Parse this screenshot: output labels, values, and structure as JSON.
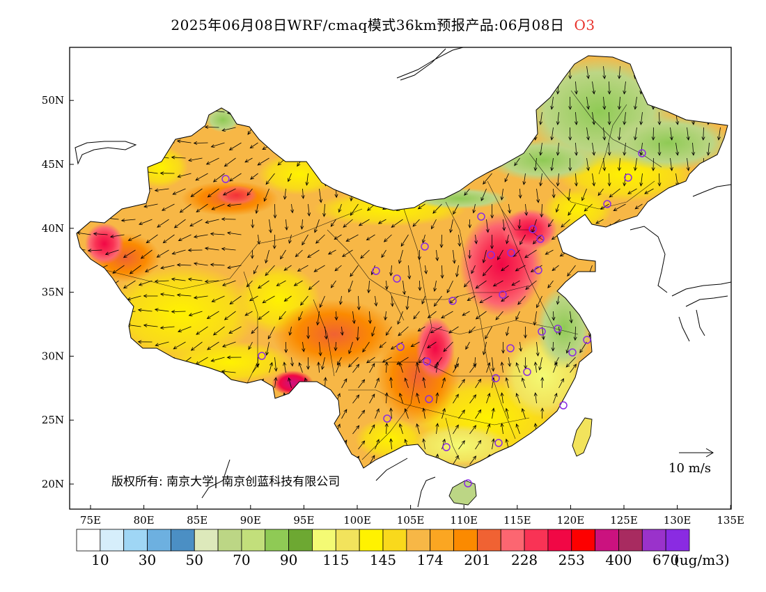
{
  "header": {
    "title": "2025年06月08日WRF/cmaq模式36km预报产品:06月08日",
    "species": "O3"
  },
  "axes": {
    "lon_ticks": [
      "75E",
      "80E",
      "85E",
      "90E",
      "95E",
      "100E",
      "105E",
      "110E",
      "115E",
      "120E",
      "125E",
      "130E",
      "135E"
    ],
    "lat_ticks": [
      "20N",
      "25N",
      "30N",
      "35N",
      "40N",
      "45N",
      "50N"
    ]
  },
  "vector_legend": {
    "label": "10 m/s"
  },
  "copyright": "版权所有: 南京大学| 南京创蓝科技有限公司",
  "colorbar": {
    "colors": [
      "#ffffff",
      "#d6eefb",
      "#9fd6f5",
      "#6db0e0",
      "#4b8fc4",
      "#dde9bb",
      "#bcd685",
      "#c2df7b",
      "#8fca55",
      "#6da832",
      "#f4fa74",
      "#f2e35c",
      "#fff200",
      "#f9d91c",
      "#f7b746",
      "#fba622",
      "#fb8a00",
      "#f06233",
      "#fc6671",
      "#f93355",
      "#f10745",
      "#fd0000",
      "#cb127f",
      "#a82b60",
      "#9a32cb",
      "#8a2be2"
    ],
    "labels": [
      "10",
      "30",
      "50",
      "70",
      "90",
      "115",
      "145",
      "174",
      "201",
      "228",
      "253",
      "400",
      "670"
    ],
    "unit": "(ug/m3)"
  },
  "colors": {
    "frame": "#000000",
    "land_base": "#f7b746",
    "station": "#8a2be2"
  }
}
